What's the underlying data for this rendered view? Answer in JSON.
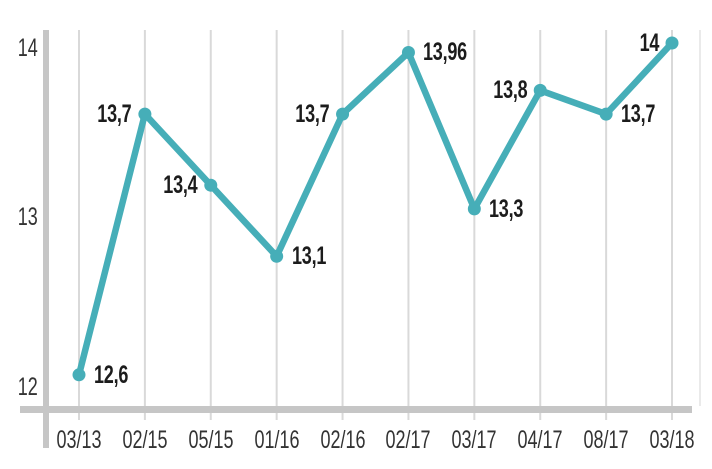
{
  "chart_data": {
    "type": "line",
    "categories": [
      "03/13",
      "02/15",
      "05/15",
      "01/16",
      "02/16",
      "02/17",
      "03/17",
      "04/17",
      "08/17",
      "03/18"
    ],
    "values": [
      12.6,
      13.7,
      13.4,
      13.1,
      13.7,
      13.96,
      13.3,
      13.8,
      13.7,
      14
    ],
    "point_labels": [
      "12,6",
      "13,7",
      "13,4",
      "13,1",
      "13,7",
      "13,96",
      "13,3",
      "13,8",
      "13,7",
      "14"
    ],
    "label_sides": [
      "right",
      "left",
      "left",
      "right",
      "left",
      "right",
      "right",
      "left",
      "right",
      "left"
    ],
    "y_ticks": [
      "14",
      "13",
      "12"
    ],
    "title": "",
    "xlabel": "",
    "ylabel": "",
    "ylim": [
      12,
      14
    ],
    "grid": "vertical-only",
    "legend": "none",
    "colors": {
      "line": "#46aeb8",
      "point": "#46aeb8",
      "gridline": "#d9d9d9",
      "axis": "#c6c6c6",
      "tick_text": "#333333",
      "value_text": "#1c1c1c",
      "background": "#ffffff"
    }
  }
}
